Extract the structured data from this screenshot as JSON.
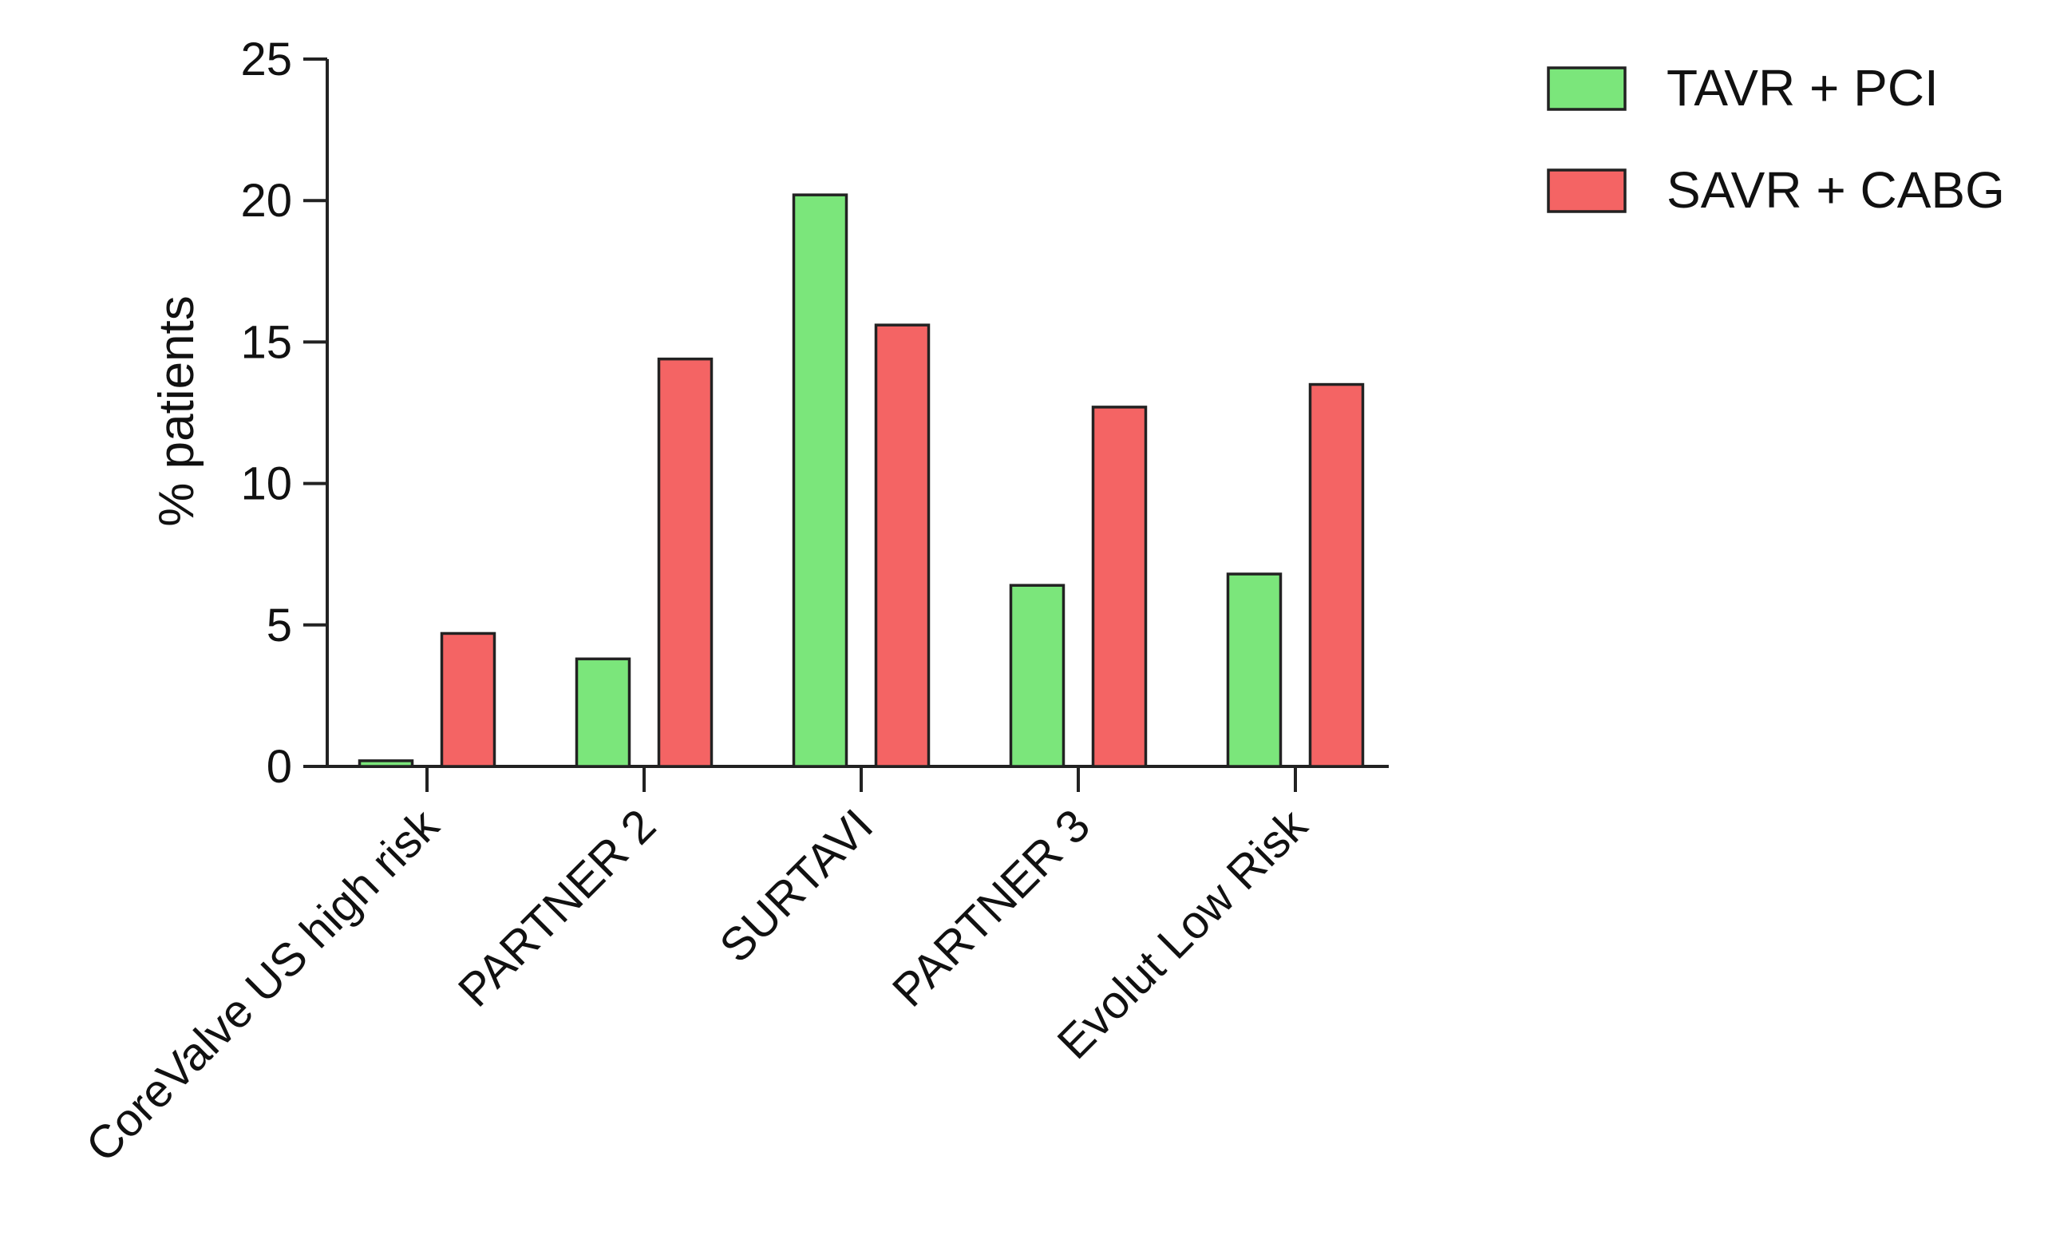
{
  "chart_data": {
    "type": "bar",
    "categories": [
      "CoreValve US high risk",
      "PARTNER 2",
      "SURTAVI",
      "PARTNER 3",
      "Evolut Low Risk"
    ],
    "series": [
      {
        "name": "TAVR + PCI",
        "color": "#7be67b",
        "values": [
          0.2,
          3.8,
          20.2,
          6.4,
          6.8
        ]
      },
      {
        "name": "SAVR + CABG",
        "color": "#f46464",
        "values": [
          4.7,
          14.4,
          15.6,
          12.7,
          13.5
        ]
      }
    ],
    "ylabel": "% patients",
    "xlabel": "",
    "ylim": [
      0,
      25
    ],
    "yticks": [
      0,
      5,
      10,
      15,
      20,
      25
    ],
    "legend_position": "top-right",
    "grid": false
  }
}
